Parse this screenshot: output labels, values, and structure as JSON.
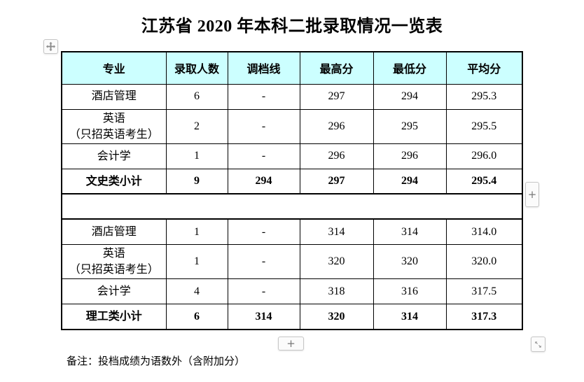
{
  "title": "江苏省 2020 年本科二批录取情况一览表",
  "table": {
    "header_bg": "#ccffff",
    "headers": [
      "专业",
      "录取人数",
      "调档线",
      "最高分",
      "最低分",
      "平均分"
    ],
    "sections": [
      {
        "rows": [
          {
            "major": "酒店管理",
            "count": "6",
            "line": "-",
            "max": "297",
            "min": "294",
            "avg": "295.3",
            "bold": false
          },
          {
            "major": "英语\n（只招英语考生）",
            "count": "2",
            "line": "-",
            "max": "296",
            "min": "295",
            "avg": "295.5",
            "bold": false
          },
          {
            "major": "会计学",
            "count": "1",
            "line": "-",
            "max": "296",
            "min": "296",
            "avg": "296.0",
            "bold": false
          },
          {
            "major": "文史类小计",
            "count": "9",
            "line": "294",
            "max": "297",
            "min": "294",
            "avg": "295.4",
            "bold": true
          }
        ]
      },
      {
        "rows": [
          {
            "major": "酒店管理",
            "count": "1",
            "line": "-",
            "max": "314",
            "min": "314",
            "avg": "314.0",
            "bold": false
          },
          {
            "major": "英语\n（只招英语考生）",
            "count": "1",
            "line": "-",
            "max": "320",
            "min": "320",
            "avg": "320.0",
            "bold": false
          },
          {
            "major": "会计学",
            "count": "4",
            "line": "-",
            "max": "318",
            "min": "316",
            "avg": "317.5",
            "bold": false
          },
          {
            "major": "理工类小计",
            "count": "6",
            "line": "314",
            "max": "320",
            "min": "314",
            "avg": "317.3",
            "bold": true
          }
        ]
      }
    ]
  },
  "note": "备注：投档成绩为语数外（含附加分）",
  "controls": {
    "add_column_label": "+",
    "add_row_label": "+"
  }
}
